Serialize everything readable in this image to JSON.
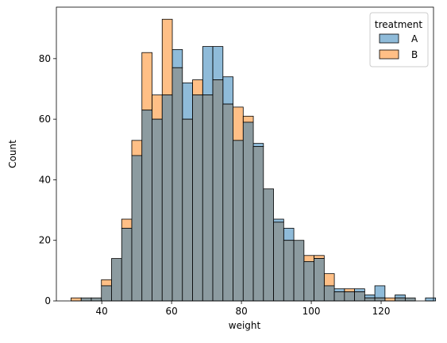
{
  "chart_data": {
    "type": "bar",
    "subtype": "overlaid-histogram",
    "xlabel": "weight",
    "ylabel": "Count",
    "xlim": [
      27.0,
      135.0
    ],
    "ylim": [
      0,
      97
    ],
    "xticks": [
      40,
      60,
      80,
      100,
      120
    ],
    "yticks": [
      0,
      20,
      40,
      60,
      80
    ],
    "bin_start": 31.2,
    "bin_width": 2.9,
    "legend": {
      "title": "treatment",
      "position": "top-right"
    },
    "series": [
      {
        "name": "A",
        "color": "#1f77b4",
        "values": [
          0,
          1,
          1,
          5,
          14,
          24,
          48,
          63,
          60,
          68,
          83,
          72,
          68,
          84,
          84,
          74,
          53,
          59,
          52,
          37,
          27,
          24,
          20,
          13,
          14,
          5,
          4,
          3,
          4,
          2,
          5,
          0,
          2,
          1,
          0,
          1
        ]
      },
      {
        "name": "B",
        "color": "#ff7f0e",
        "values": [
          1,
          1,
          1,
          7,
          14,
          27,
          53,
          82,
          68,
          93,
          77,
          60,
          73,
          68,
          73,
          65,
          64,
          61,
          51,
          37,
          26,
          20,
          20,
          15,
          15,
          9,
          3,
          4,
          3,
          1,
          1,
          1,
          1,
          1,
          0,
          0
        ]
      }
    ]
  }
}
